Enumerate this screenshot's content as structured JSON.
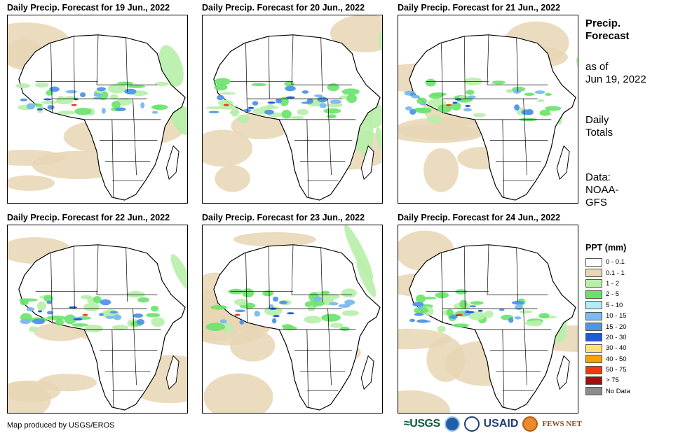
{
  "panels": [
    {
      "title": "Daily Precip. Forecast for 19 Jun., 2022"
    },
    {
      "title": "Daily Precip. Forecast for 20 Jun., 2022"
    },
    {
      "title": "Daily Precip. Forecast for 21 Jun., 2022"
    },
    {
      "title": "Daily Precip. Forecast for 22 Jun., 2022"
    },
    {
      "title": "Daily Precip. Forecast for 23 Jun., 2022"
    },
    {
      "title": "Daily Precip. Forecast for 24 Jun., 2022"
    }
  ],
  "side": {
    "title_line1": "Precip.",
    "title_line2": "Forecast",
    "asof_line1": "as of",
    "asof_line2": "Jun 19, 2022",
    "totals_line1": "Daily",
    "totals_line2": "Totals",
    "source_line1": "Data:",
    "source_line2": "NOAA-",
    "source_line3": "GFS"
  },
  "legend": {
    "title": "PPT (mm)",
    "items": [
      {
        "label": "0 - 0.1",
        "color": "#ffffff"
      },
      {
        "label": "0.1 - 1",
        "color": "#e8d6b4"
      },
      {
        "label": "1 - 2",
        "color": "#b7f0a8"
      },
      {
        "label": "2 - 5",
        "color": "#68e36a"
      },
      {
        "label": "5 - 10",
        "color": "#b4ecf5"
      },
      {
        "label": "10 - 15",
        "color": "#7bb9ef"
      },
      {
        "label": "15 - 20",
        "color": "#4f95e6"
      },
      {
        "label": "20 - 30",
        "color": "#1e5bd8"
      },
      {
        "label": "30 - 40",
        "color": "#fde27a"
      },
      {
        "label": "40 - 50",
        "color": "#f5a300"
      },
      {
        "label": "50 - 75",
        "color": "#ef3a10"
      },
      {
        "label": "> 75",
        "color": "#a01010"
      },
      {
        "label": "No Data",
        "color": "#8c8c8c"
      }
    ]
  },
  "credit": "Map produced by USGS/EROS",
  "logos": {
    "usgs": "≈USGS",
    "usaid": "USAID",
    "fews": "FEWS NET"
  }
}
